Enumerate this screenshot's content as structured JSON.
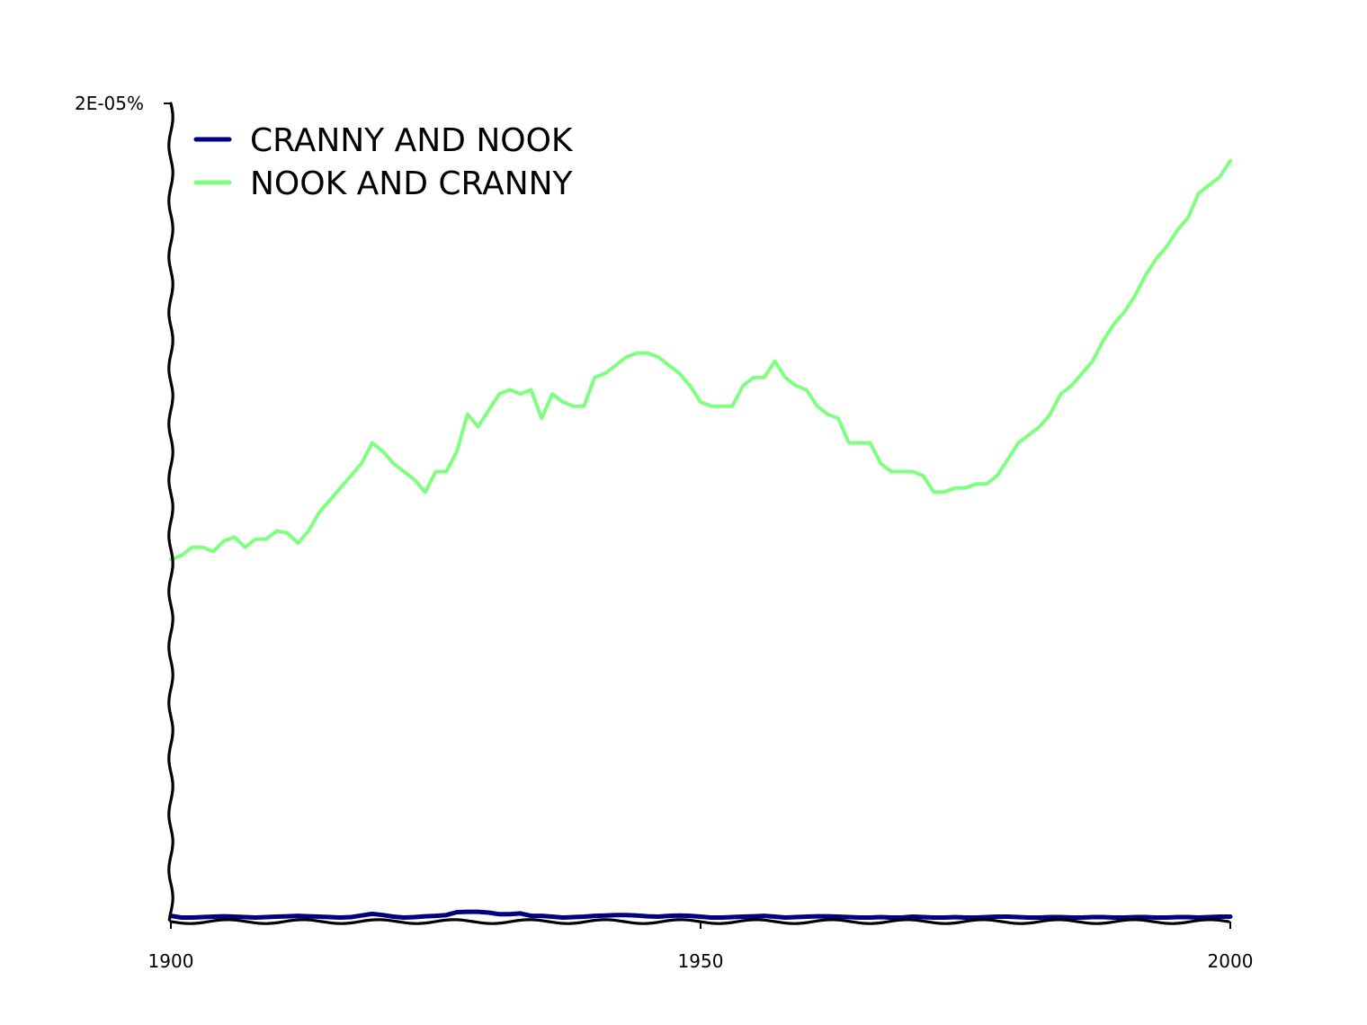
{
  "chart_data": {
    "type": "line",
    "x_start": 1900,
    "x_step": 1,
    "xlim": [
      1900,
      2000
    ],
    "ylim": [
      0,
      2e-05
    ],
    "x_tick_labels": [
      "1900",
      "1950",
      "2000"
    ],
    "x_tick_values": [
      1900,
      1950,
      2000
    ],
    "y_tick_labels": [
      "2E-05%"
    ],
    "y_tick_values": [
      2e-05
    ],
    "grid": false,
    "legend_position": "top-left",
    "style": "hand-drawn",
    "series": [
      {
        "name": "cranny and nook",
        "color": "#000080",
        "values": [
          1.4e-07,
          1e-07,
          1e-07,
          1.1e-07,
          1.2e-07,
          1.3e-07,
          1.2e-07,
          1.1e-07,
          1e-07,
          1.1e-07,
          1.2e-07,
          1.3e-07,
          1.4e-07,
          1.3e-07,
          1.2e-07,
          1.1e-07,
          1e-07,
          1.1e-07,
          1.5e-07,
          1.9e-07,
          1.6e-07,
          1.2e-07,
          1e-07,
          1.1e-07,
          1.3e-07,
          1.4e-07,
          1.6e-07,
          2.3e-07,
          2.4e-07,
          2.4e-07,
          2.2e-07,
          1.8e-07,
          1.8e-07,
          2e-07,
          1.4e-07,
          1.4e-07,
          1.2e-07,
          1e-07,
          1.1e-07,
          1.2e-07,
          1.4e-07,
          1.5e-07,
          1.6e-07,
          1.6e-07,
          1.5e-07,
          1.3e-07,
          1.2e-07,
          1.4e-07,
          1.5e-07,
          1.4e-07,
          1.2e-07,
          1e-07,
          1e-07,
          1.1e-07,
          1.2e-07,
          1.3e-07,
          1.4e-07,
          1.2e-07,
          1e-07,
          1.1e-07,
          1.2e-07,
          1.3e-07,
          1.3e-07,
          1.2e-07,
          1.1e-07,
          1e-07,
          1e-07,
          1.1e-07,
          1e-07,
          1e-07,
          1.2e-07,
          1.1e-07,
          1e-07,
          1e-07,
          1.1e-07,
          1e-07,
          1e-07,
          1.1e-07,
          1.2e-07,
          1.2e-07,
          1.1e-07,
          1e-07,
          1e-07,
          1.1e-07,
          1.1e-07,
          1e-07,
          1e-07,
          1.1e-07,
          1.1e-07,
          1e-07,
          1e-07,
          1.1e-07,
          1.1e-07,
          1e-07,
          1e-07,
          1.1e-07,
          1.1e-07,
          1e-07,
          1.1e-07,
          1.2e-07,
          1.2e-07
        ]
      },
      {
        "name": "nook and cranny",
        "color": "#7fff7f",
        "values": [
          8.85e-06,
          8.95e-06,
          9.15e-06,
          9.15e-06,
          9.05e-06,
          9.3e-06,
          9.4e-06,
          9.15e-06,
          9.35e-06,
          9.35e-06,
          9.55e-06,
          9.5e-06,
          9.25e-06,
          9.55e-06,
          1e-05,
          1.03e-05,
          1.06e-05,
          1.09e-05,
          1.12e-05,
          1.17e-05,
          1.15e-05,
          1.12e-05,
          1.1e-05,
          1.08e-05,
          1.05e-05,
          1.1e-05,
          1.1e-05,
          1.15e-05,
          1.24e-05,
          1.21e-05,
          1.25e-05,
          1.29e-05,
          1.3e-05,
          1.29e-05,
          1.3e-05,
          1.23e-05,
          1.29e-05,
          1.27e-05,
          1.26e-05,
          1.26e-05,
          1.33e-05,
          1.34e-05,
          1.36e-05,
          1.38e-05,
          1.39e-05,
          1.39e-05,
          1.38e-05,
          1.36e-05,
          1.34e-05,
          1.31e-05,
          1.27e-05,
          1.26e-05,
          1.26e-05,
          1.26e-05,
          1.31e-05,
          1.33e-05,
          1.33e-05,
          1.37e-05,
          1.33e-05,
          1.31e-05,
          1.3e-05,
          1.26e-05,
          1.24e-05,
          1.23e-05,
          1.17e-05,
          1.17e-05,
          1.17e-05,
          1.12e-05,
          1.1e-05,
          1.1e-05,
          1.1e-05,
          1.09e-05,
          1.05e-05,
          1.05e-05,
          1.06e-05,
          1.06e-05,
          1.07e-05,
          1.07e-05,
          1.09e-05,
          1.13e-05,
          1.17e-05,
          1.19e-05,
          1.21e-05,
          1.24e-05,
          1.29e-05,
          1.31e-05,
          1.34e-05,
          1.37e-05,
          1.42e-05,
          1.46e-05,
          1.49e-05,
          1.53e-05,
          1.58e-05,
          1.62e-05,
          1.65e-05,
          1.69e-05,
          1.72e-05,
          1.78e-05,
          1.8e-05,
          1.82e-05,
          1.86e-05
        ]
      }
    ]
  }
}
